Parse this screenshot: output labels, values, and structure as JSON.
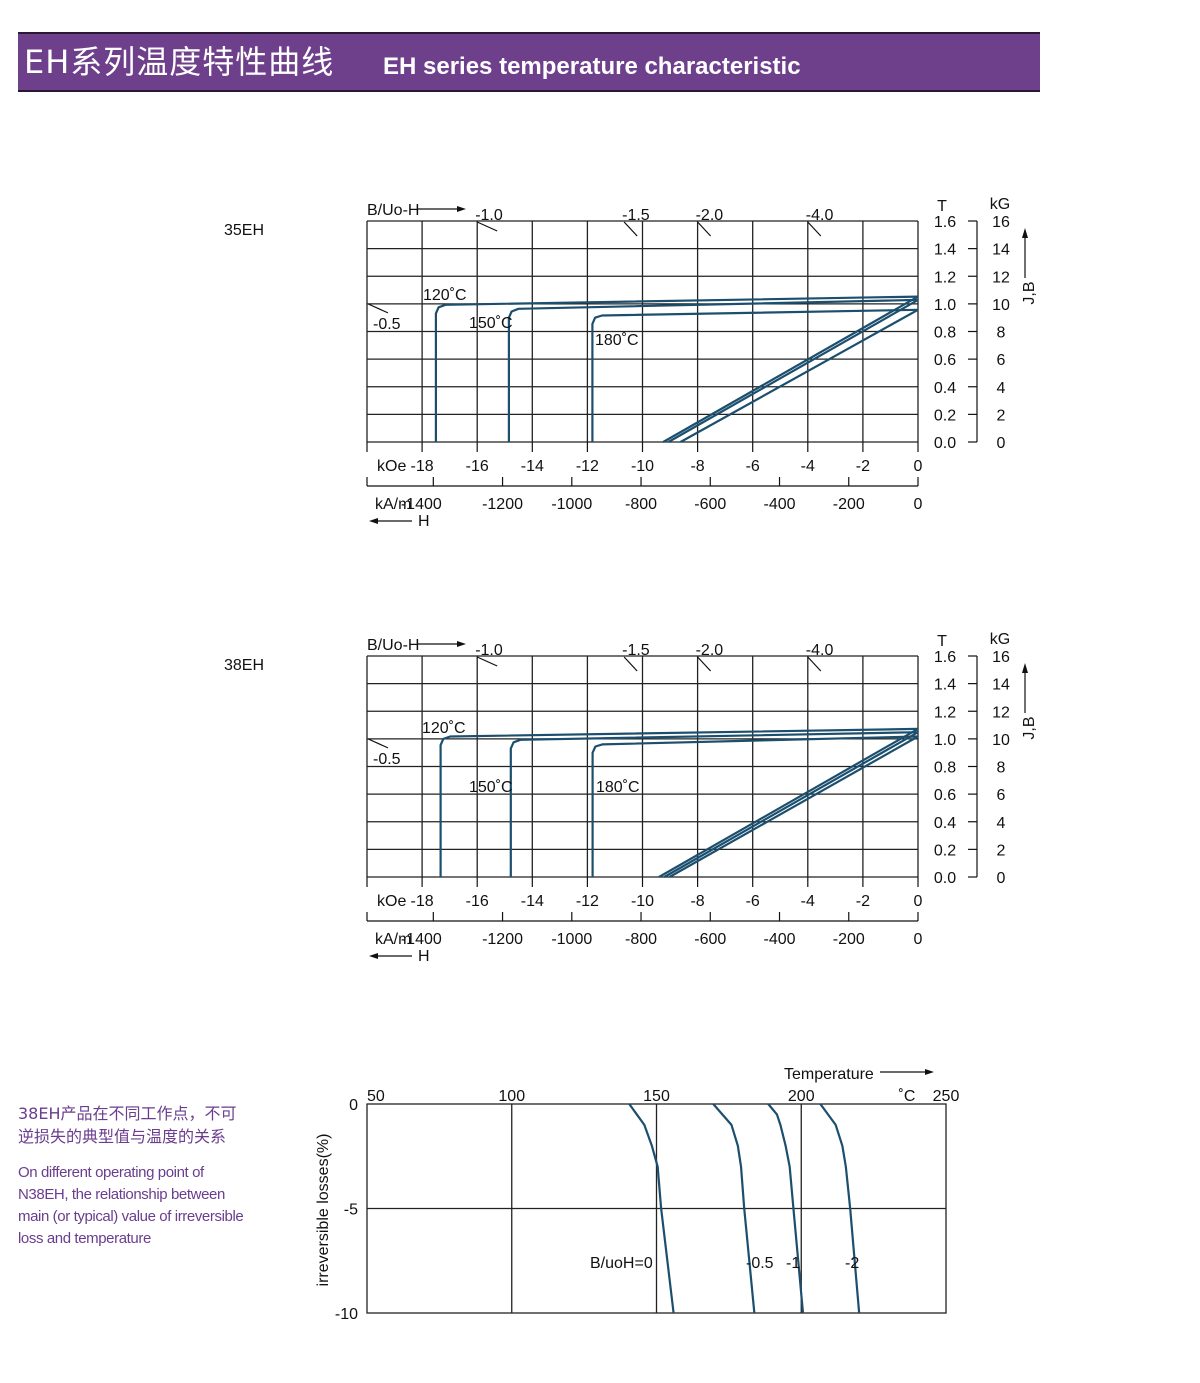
{
  "header": {
    "title_cn": "EH系列温度特性曲线",
    "title_en": "EH  series temperature characteristic"
  },
  "colors": {
    "header_bg": "#6e3f8a",
    "curve": "#1c4f6e",
    "note_text": "#6a3d8f",
    "grid": "#222222"
  },
  "note": {
    "cn_lines": [
      "38EH产品在不同工作点，不可",
      "逆损失的典型值与温度的关系"
    ],
    "en_lines": [
      "On different operating point of",
      "N38EH,  the relationship between",
      "main (or typical) value of irreversible",
      "loss and temperature"
    ]
  },
  "chart_data": [
    {
      "type": "line",
      "grade": "35EH",
      "permeance": {
        "label": "B/Uo-H",
        "values": [
          -0.5,
          -1.0,
          -1.5,
          -2.0,
          -4.0
        ],
        "labels": [
          "-0.5",
          "-1.0",
          "-1.5",
          "-2.0",
          "-4.0"
        ]
      },
      "x_axis": {
        "label": "kOe",
        "range": [
          -20,
          0
        ],
        "ticks": [
          -18,
          -16,
          -14,
          -12,
          -10,
          -8,
          -6,
          -4,
          -2,
          0
        ],
        "tick_labels": [
          "-18",
          "-16",
          "-14",
          "-12",
          "-10",
          "-8",
          "-6",
          "-4",
          "-2",
          "0"
        ]
      },
      "x2_axis": {
        "label": "kA/m",
        "ticks": [
          -1400,
          -1200,
          -1000,
          -800,
          -600,
          -400,
          -200,
          0
        ],
        "tick_labels": [
          "-1400",
          "-1200",
          "-1000",
          "-800",
          "-600",
          "-400",
          "-200",
          "0"
        ],
        "direction_label": "H"
      },
      "y_axis": {
        "unit_T": "T",
        "unit_kG": "kG",
        "title": "J,B",
        "range": [
          0,
          1.6
        ],
        "ticks": [
          0,
          0.2,
          0.4,
          0.6,
          0.8,
          1.0,
          1.2,
          1.4,
          1.6
        ],
        "tick_labels_T": [
          "0.0",
          "0.2",
          "0.4",
          "0.6",
          "0.8",
          "1.0",
          "1.2",
          "1.4",
          "1.6"
        ],
        "tick_labels_kG": [
          "0",
          "2",
          "4",
          "6",
          "8",
          "10",
          "12",
          "14",
          "16"
        ]
      },
      "grid": true,
      "series": [
        {
          "name": "120˚C",
          "J": [
            [
              -17.5,
              0
            ],
            [
              -17.5,
              0.93
            ],
            [
              -17.4,
              0.975
            ],
            [
              -17.15,
              0.993
            ],
            [
              0,
              1.053
            ]
          ],
          "B": [
            [
              -9.25,
              0
            ],
            [
              0,
              1.053
            ]
          ]
        },
        {
          "name": "150˚C",
          "J": [
            [
              -14.85,
              0
            ],
            [
              -14.85,
              0.9
            ],
            [
              -14.75,
              0.945
            ],
            [
              -14.5,
              0.964
            ],
            [
              0,
              1.029
            ]
          ],
          "B": [
            [
              -9.06,
              0
            ],
            [
              0,
              1.029
            ]
          ]
        },
        {
          "name": "180˚C",
          "J": [
            [
              -11.82,
              0
            ],
            [
              -11.82,
              0.855
            ],
            [
              -11.72,
              0.9
            ],
            [
              -11.47,
              0.916
            ],
            [
              0,
              0.957
            ]
          ],
          "B": [
            [
              -8.62,
              0
            ],
            [
              0,
              0.957
            ]
          ]
        }
      ]
    },
    {
      "type": "line",
      "grade": "38EH",
      "permeance": {
        "label": "B/Uo-H",
        "values": [
          -0.5,
          -1.0,
          -1.5,
          -2.0,
          -4.0
        ],
        "labels": [
          "-0.5",
          "-1.0",
          "-1.5",
          "-2.0",
          "-4.0"
        ]
      },
      "x_axis": {
        "label": "kOe",
        "range": [
          -20,
          0
        ],
        "ticks": [
          -18,
          -16,
          -14,
          -12,
          -10,
          -8,
          -6,
          -4,
          -2,
          0
        ],
        "tick_labels": [
          "-18",
          "-16",
          "-14",
          "-12",
          "-10",
          "-8",
          "-6",
          "-4",
          "-2",
          "0"
        ]
      },
      "x2_axis": {
        "label": "kA/m",
        "ticks": [
          -1400,
          -1200,
          -1000,
          -800,
          -600,
          -400,
          -200,
          0
        ],
        "tick_labels": [
          "-1400",
          "-1200",
          "-1000",
          "-800",
          "-600",
          "-400",
          "-200",
          "0"
        ],
        "direction_label": "H"
      },
      "y_axis": {
        "unit_T": "T",
        "unit_kG": "kG",
        "title": "J,B",
        "range": [
          0,
          1.6
        ],
        "ticks": [
          0,
          0.2,
          0.4,
          0.6,
          0.8,
          1.0,
          1.2,
          1.4,
          1.6
        ],
        "tick_labels_T": [
          "0.0",
          "0.2",
          "0.4",
          "0.6",
          "0.8",
          "1.0",
          "1.2",
          "1.4",
          "1.6"
        ],
        "tick_labels_kG": [
          "0",
          "2",
          "4",
          "6",
          "8",
          "10",
          "12",
          "14",
          "16"
        ]
      },
      "grid": true,
      "series": [
        {
          "name": "120˚C",
          "J": [
            [
              -17.33,
              0
            ],
            [
              -17.33,
              0.955
            ],
            [
              -17.23,
              1.0
            ],
            [
              -16.98,
              1.017
            ],
            [
              0,
              1.072
            ]
          ],
          "B": [
            [
              -9.4,
              0
            ],
            [
              0,
              1.072
            ]
          ]
        },
        {
          "name": "150˚C",
          "J": [
            [
              -14.78,
              0
            ],
            [
              -14.78,
              0.93
            ],
            [
              -14.68,
              0.975
            ],
            [
              -14.43,
              0.993
            ],
            [
              0,
              1.048
            ]
          ],
          "B": [
            [
              -9.21,
              0
            ],
            [
              0,
              1.048
            ]
          ]
        },
        {
          "name": "180˚C",
          "J": [
            [
              -11.81,
              0
            ],
            [
              -11.81,
              0.9
            ],
            [
              -11.71,
              0.945
            ],
            [
              -11.46,
              0.96
            ],
            [
              0,
              1.017
            ]
          ],
          "B": [
            [
              -9.02,
              0
            ],
            [
              0,
              1.017
            ]
          ]
        }
      ]
    },
    {
      "type": "line",
      "x_axis": {
        "label": "Temperature",
        "unit": "˚C",
        "range": [
          50,
          250
        ],
        "ticks": [
          50,
          100,
          150,
          200,
          250
        ],
        "tick_labels": [
          "50",
          "100",
          "150",
          "200",
          "250"
        ]
      },
      "y_axis": {
        "label": "irreversible  losses(%)",
        "range": [
          -10,
          0
        ],
        "ticks": [
          0,
          -5,
          -10
        ],
        "tick_labels": [
          "0",
          "-5",
          "-10"
        ]
      },
      "grid": true,
      "series": [
        {
          "name": "B/uoH=0",
          "points": [
            [
              140.6,
              0
            ],
            [
              145.8,
              -1
            ],
            [
              148.4,
              -2
            ],
            [
              150.4,
              -3
            ],
            [
              151.6,
              -5
            ],
            [
              155.9,
              -10
            ]
          ]
        },
        {
          "name": "-0.5",
          "points": [
            [
              169.6,
              0
            ],
            [
              175.9,
              -1
            ],
            [
              178.1,
              -2
            ],
            [
              179.2,
              -3
            ],
            [
              180.3,
              -5
            ],
            [
              183.8,
              -10
            ]
          ]
        },
        {
          "name": "-1",
          "points": [
            [
              188.6,
              0
            ],
            [
              191.6,
              -0.5
            ],
            [
              192.8,
              -1
            ],
            [
              194.6,
              -2
            ],
            [
              196,
              -3
            ],
            [
              197.3,
              -5
            ],
            [
              200.6,
              -10
            ]
          ]
        },
        {
          "name": "-2",
          "points": [
            [
              206.6,
              0
            ],
            [
              211.9,
              -1
            ],
            [
              214.2,
              -2
            ],
            [
              215.4,
              -3
            ],
            [
              216.9,
              -5
            ],
            [
              220,
              -10
            ]
          ]
        }
      ]
    }
  ]
}
